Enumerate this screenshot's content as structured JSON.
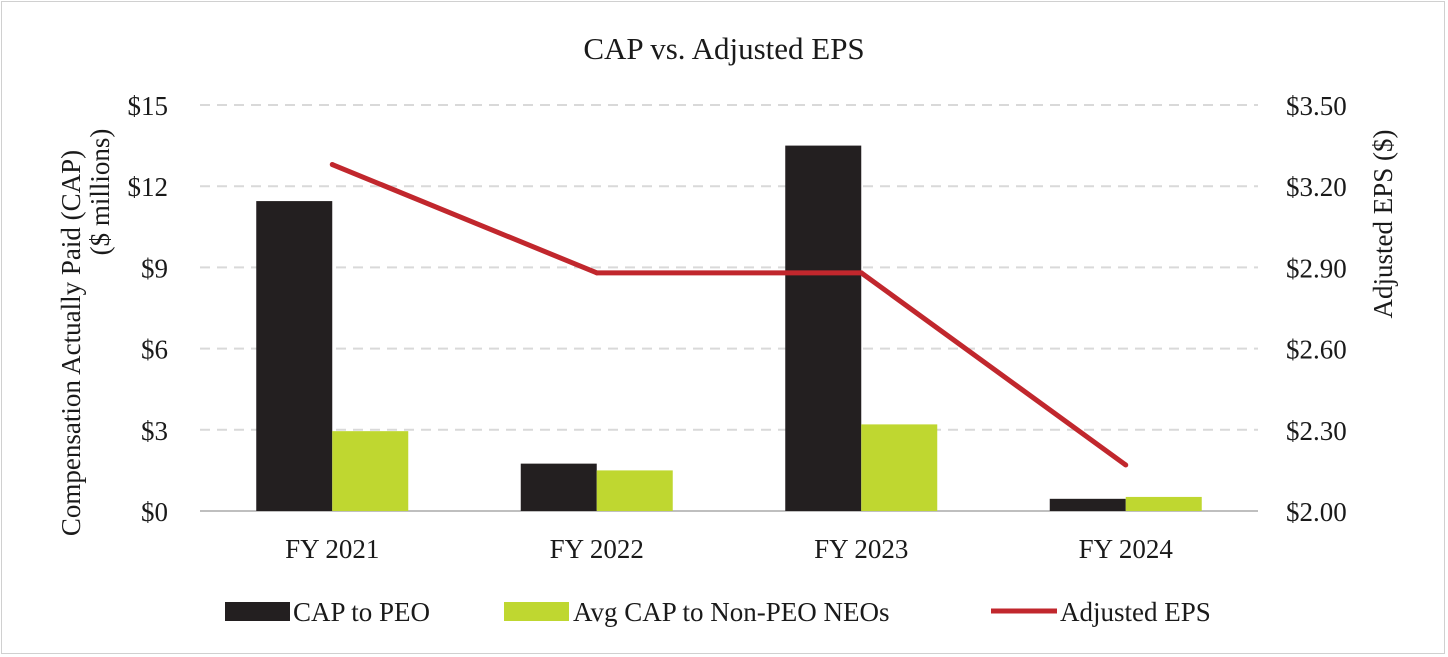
{
  "chart_data": {
    "type": "bar",
    "title": "CAP vs. Adjusted EPS",
    "categories": [
      "FY 2021",
      "FY 2022",
      "FY 2023",
      "FY 2024"
    ],
    "y_left": {
      "label_line1": "Compensation Actually Paid (CAP)",
      "label_line2": "($ millions)",
      "ylim": [
        0,
        15
      ],
      "ticks": [
        0,
        3,
        6,
        9,
        12,
        15
      ],
      "tick_labels": [
        "$0",
        "$3",
        "$6",
        "$9",
        "$12",
        "$15"
      ]
    },
    "y_right": {
      "label": "Adjusted EPS ($)",
      "ylim": [
        2.0,
        3.5
      ],
      "ticks": [
        2.0,
        2.3,
        2.6,
        2.9,
        3.2,
        3.5
      ],
      "tick_labels": [
        "$2.00",
        "$2.30",
        "$2.60",
        "$2.90",
        "$3.20",
        "$3.50"
      ]
    },
    "series": [
      {
        "name": "CAP to PEO",
        "type": "bar",
        "axis": "left",
        "color": "#231f20",
        "values": [
          11.45,
          1.75,
          13.5,
          0.45
        ]
      },
      {
        "name": "Avg CAP to Non-PEO NEOs",
        "type": "bar",
        "axis": "left",
        "color": "#bfd730",
        "values": [
          2.95,
          1.5,
          3.2,
          0.52
        ]
      }
    ],
    "line_series": {
      "name": "Adjusted EPS",
      "type": "line",
      "axis": "right",
      "color": "#c1272d",
      "values": [
        3.28,
        2.88,
        2.88,
        2.17
      ]
    },
    "grid": true,
    "legend_position": "bottom"
  }
}
